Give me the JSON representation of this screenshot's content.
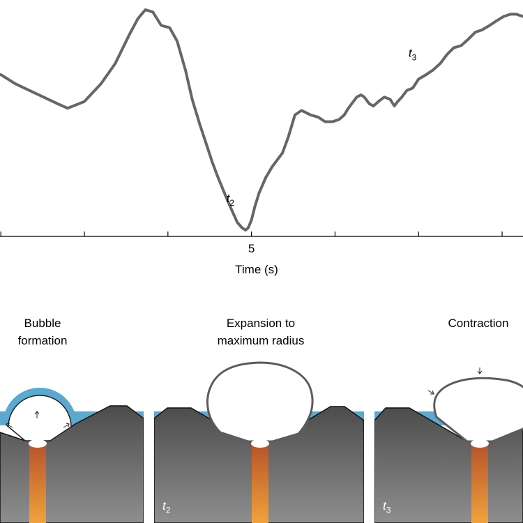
{
  "chart_data": {
    "type": "line",
    "title": "",
    "xlabel": "Time (s)",
    "ylabel": "",
    "xlim": [
      1.99,
      8.25
    ],
    "x_ticks": [
      2,
      3,
      4,
      5,
      6,
      7,
      8
    ],
    "x_tick_labels": [
      {
        "value": 5,
        "label": "5"
      }
    ],
    "ylim": [
      0,
      1
    ],
    "grid": false,
    "series": [
      {
        "name": "",
        "color": "#666666",
        "x": [
          2.0,
          2.17,
          2.34,
          2.51,
          2.68,
          2.8,
          3.0,
          3.2,
          3.37,
          3.54,
          3.64,
          3.73,
          3.82,
          3.92,
          4.02,
          4.11,
          4.21,
          4.29,
          4.38,
          4.46,
          4.53,
          4.59,
          4.7,
          4.77,
          4.83,
          4.89,
          4.93,
          4.96,
          5.0,
          5.04,
          5.09,
          5.17,
          5.25,
          5.37,
          5.44,
          5.52,
          5.6,
          5.71,
          5.8,
          5.88,
          5.97,
          6.05,
          6.11,
          6.16,
          6.22,
          6.26,
          6.31,
          6.35,
          6.41,
          6.46,
          6.52,
          6.59,
          6.66,
          6.71,
          6.75,
          6.8,
          6.86,
          6.93,
          7.0,
          7.09,
          7.17,
          7.26,
          7.34,
          7.42,
          7.51,
          7.6,
          7.68,
          7.76,
          7.85,
          7.93,
          8.02,
          8.1,
          8.17,
          8.25
        ],
        "values": [
          0.71,
          0.67,
          0.64,
          0.61,
          0.58,
          0.56,
          0.59,
          0.67,
          0.76,
          0.89,
          0.96,
          1.0,
          0.99,
          0.93,
          0.92,
          0.86,
          0.73,
          0.6,
          0.49,
          0.4,
          0.32,
          0.26,
          0.16,
          0.1,
          0.05,
          0.025,
          0.016,
          0.025,
          0.06,
          0.12,
          0.18,
          0.25,
          0.3,
          0.36,
          0.43,
          0.53,
          0.55,
          0.53,
          0.52,
          0.5,
          0.5,
          0.51,
          0.53,
          0.56,
          0.59,
          0.61,
          0.62,
          0.61,
          0.58,
          0.57,
          0.59,
          0.61,
          0.6,
          0.57,
          0.59,
          0.61,
          0.64,
          0.65,
          0.69,
          0.71,
          0.73,
          0.76,
          0.8,
          0.83,
          0.84,
          0.87,
          0.9,
          0.91,
          0.93,
          0.95,
          0.97,
          0.98,
          0.98,
          0.97
        ]
      }
    ],
    "annotations": [
      {
        "text": "t",
        "subscript": "2",
        "x": 4.7,
        "y": 0.14
      },
      {
        "text": "t",
        "subscript": "3",
        "x": 6.88,
        "y": 0.79
      }
    ]
  },
  "panels": [
    {
      "title_lines": [
        "Bubble",
        "formation"
      ],
      "time_label": "",
      "time_sub": ""
    },
    {
      "title_lines": [
        "Expansion to",
        "maximum radius"
      ],
      "time_label": "t",
      "time_sub": "2"
    },
    {
      "title_lines": [
        "Contraction"
      ],
      "time_label": "t",
      "time_sub": "3"
    }
  ],
  "colors": {
    "line": "#666666",
    "rock_top": "#4c4c4c",
    "rock_bottom": "#8e8e8e",
    "water": "#5aa9cf",
    "vent_top": "#b8522a",
    "vent_bottom": "#f0a23c"
  }
}
